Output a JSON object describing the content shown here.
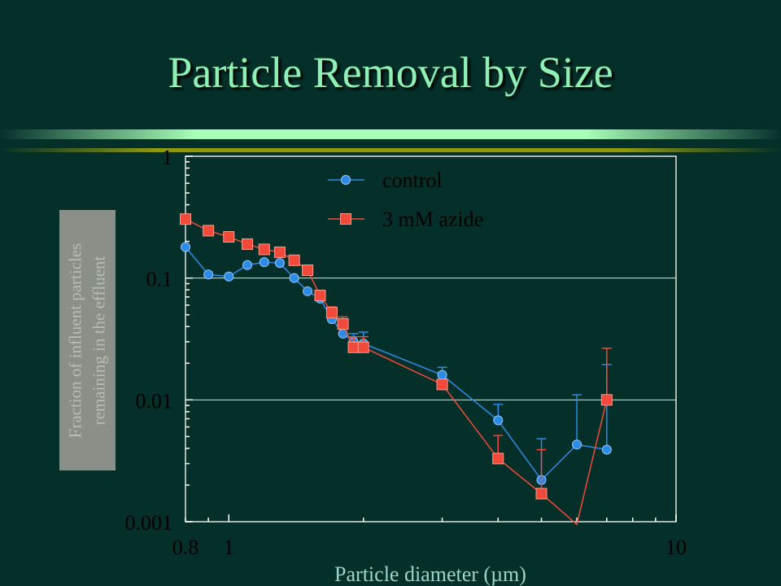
{
  "slide": {
    "title": "Particle Removal by Size"
  },
  "colors": {
    "background": "#05302a",
    "title": "#8ff0b4",
    "control": "#2d8be6",
    "azide": "#f24a3a",
    "gridline": "#d8e6d2",
    "plot_frame": "#e0e6d8",
    "divider_bright": "#a8ffb8",
    "divider_olive": "#8c9a12"
  },
  "chart_data": {
    "type": "scatter",
    "xscale": "log",
    "yscale": "log",
    "xlim": [
      0.8,
      10
    ],
    "ylim": [
      0.001,
      1
    ],
    "xticks": [
      "0.8",
      "1",
      "10"
    ],
    "yticks": [
      "0.001",
      "0.01",
      "0.1",
      "1"
    ],
    "xlabel": "Particle diameter (µm)",
    "ylabel": "Fraction of influent particles remaining in the effluent",
    "grid": "horizontal major",
    "legend_position": "top-center",
    "series": [
      {
        "name": "control",
        "color": "#2d8be6",
        "marker": "circle",
        "x": [
          0.8,
          0.9,
          1.0,
          1.1,
          1.2,
          1.3,
          1.4,
          1.5,
          1.6,
          1.7,
          1.8,
          1.9,
          2.0,
          3.0,
          4.0,
          5.0,
          6.0,
          7.0
        ],
        "y": [
          0.18,
          0.107,
          0.103,
          0.128,
          0.135,
          0.133,
          0.1,
          0.078,
          0.068,
          0.046,
          0.035,
          0.03,
          0.029,
          0.016,
          0.0068,
          0.0022,
          0.0043,
          0.0039
        ],
        "error_upper": [
          null,
          null,
          null,
          null,
          null,
          null,
          null,
          null,
          null,
          0.052,
          0.04,
          0.035,
          0.036,
          0.0185,
          0.0092,
          0.0048,
          0.011,
          0.0195
        ]
      },
      {
        "name": "3 mM azide",
        "color": "#f24a3a",
        "marker": "square",
        "x": [
          0.8,
          0.9,
          1.0,
          1.1,
          1.2,
          1.3,
          1.4,
          1.5,
          1.6,
          1.7,
          1.8,
          1.9,
          2.0,
          3.0,
          4.0,
          5.0,
          6.0,
          7.0
        ],
        "y": [
          0.305,
          0.245,
          0.218,
          0.19,
          0.172,
          0.163,
          0.14,
          0.116,
          0.072,
          0.052,
          0.042,
          0.027,
          0.027,
          0.0134,
          0.0033,
          0.0017,
          0.00095,
          0.01
        ],
        "error_upper": [
          null,
          null,
          null,
          null,
          null,
          null,
          null,
          null,
          null,
          0.058,
          0.048,
          0.033,
          0.033,
          null,
          0.0051,
          0.0039,
          null,
          0.0265
        ]
      }
    ]
  }
}
